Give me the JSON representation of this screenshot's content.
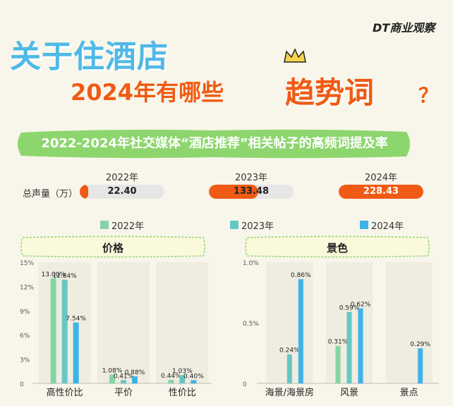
{
  "brand": "DT商业观察",
  "title_line1": "关于住酒店",
  "title_line2": "2024年有哪些",
  "title_highlight": "趋势词",
  "title_qmark": "？",
  "banner": "2022-2024年社交媒体“酒店推荐”相关帖子的高频词提及率",
  "colors": {
    "y2022": "#86d4a6",
    "y2023": "#67c7c4",
    "y2024": "#3fb3e6",
    "accent": "#f05a14",
    "banner": "#8dd66e"
  },
  "volume": {
    "label": "总声量（万）",
    "years": [
      "2022年",
      "2023年",
      "2024年"
    ],
    "values": [
      "22.40",
      "133.48",
      "228.43"
    ],
    "fractions": [
      0.1,
      0.58,
      1.0
    ]
  },
  "legend": [
    "2022年",
    "2023年",
    "2024年"
  ],
  "chart_data": [
    {
      "type": "bar",
      "title": "价格",
      "categories": [
        "高性价比",
        "平价",
        "性价比"
      ],
      "series": [
        {
          "name": "2022年",
          "values": [
            13.0,
            1.08,
            0.44
          ],
          "labels": [
            "13.00%",
            "1.08%",
            "0.44%"
          ]
        },
        {
          "name": "2023年",
          "values": [
            12.84,
            0.41,
            1.03
          ],
          "labels": [
            "12.84%",
            "0.41%",
            "1.03%"
          ]
        },
        {
          "name": "2024年",
          "values": [
            7.54,
            0.88,
            0.4
          ],
          "labels": [
            "7.54%",
            "0.88%",
            "0.40%"
          ]
        }
      ],
      "ylim": [
        0,
        15
      ],
      "yticks": [
        0,
        3,
        6,
        9,
        12,
        15
      ],
      "ytick_labels": [
        "0",
        "3%",
        "6%",
        "9%",
        "12%",
        "15%"
      ]
    },
    {
      "type": "bar",
      "title": "景色",
      "categories": [
        "海景/海景房",
        "风景",
        "景点"
      ],
      "series": [
        {
          "name": "2022年",
          "values": [
            null,
            0.31,
            null
          ],
          "labels": [
            "",
            "0.31%",
            ""
          ]
        },
        {
          "name": "2023年",
          "values": [
            0.24,
            0.59,
            null
          ],
          "labels": [
            "0.24%",
            "0.59%",
            ""
          ]
        },
        {
          "name": "2024年",
          "values": [
            0.86,
            0.62,
            0.29
          ],
          "labels": [
            "0.86%",
            "0.62%",
            "0.29%"
          ]
        }
      ],
      "ylim": [
        0,
        1.0
      ],
      "yticks": [
        0,
        0.5,
        1.0
      ],
      "ytick_labels": [
        "0",
        "0.5%",
        "1.0%"
      ]
    }
  ]
}
